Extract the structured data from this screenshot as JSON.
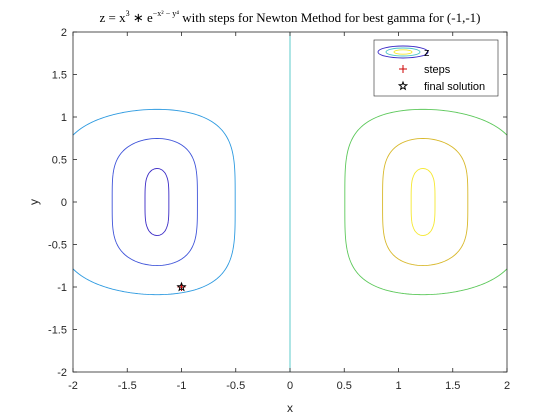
{
  "chart_data": {
    "type": "contour",
    "title": {
      "prefix": "z = x",
      "exp1": "3",
      "mid": " ∗ e",
      "exp2": "−x² − y⁴",
      "suffix": " with steps for Newton Method for best gamma for (-1,-1)"
    },
    "xlabel": "x",
    "ylabel": "y",
    "xlim": [
      -2,
      2
    ],
    "ylim": [
      -2,
      2
    ],
    "xticks": [
      -2,
      -1.5,
      -1,
      -0.5,
      0,
      0.5,
      1,
      1.5,
      2
    ],
    "xtick_labels": [
      "-2",
      "-1.5",
      "-1",
      "-0.5",
      "0",
      "0.5",
      "1",
      "1.5",
      "2"
    ],
    "yticks": [
      -2,
      -1.5,
      -1,
      -0.5,
      0,
      0.5,
      1,
      1.5,
      2
    ],
    "ytick_labels": [
      "-2",
      "-1.5",
      "-1",
      "-0.5",
      "0",
      "0.5",
      "1",
      "1.5",
      "2"
    ],
    "grid": false,
    "function": "z = x^3 * exp(-x^2 - y^4)",
    "contour_levels": [
      {
        "level": -0.4,
        "color": "#3b2bc6"
      },
      {
        "level": -0.3,
        "color": "#3f54d9"
      },
      {
        "level": -0.1,
        "color": "#2d9ae0"
      },
      {
        "level": 0.0,
        "color": "#4cc6c6"
      },
      {
        "level": 0.1,
        "color": "#5cc85a"
      },
      {
        "level": 0.3,
        "color": "#d8b82a"
      },
      {
        "level": 0.4,
        "color": "#f5e830"
      }
    ],
    "steps": {
      "x": [
        -1
      ],
      "y": [
        -1
      ],
      "color": "#cc0000",
      "marker": "+"
    },
    "final_solution": {
      "x": -1,
      "y": -1,
      "color": "#000000",
      "marker": "pentagram"
    },
    "legend": {
      "placement": "top-right",
      "entries": [
        "z",
        "steps",
        "final solution"
      ]
    }
  }
}
